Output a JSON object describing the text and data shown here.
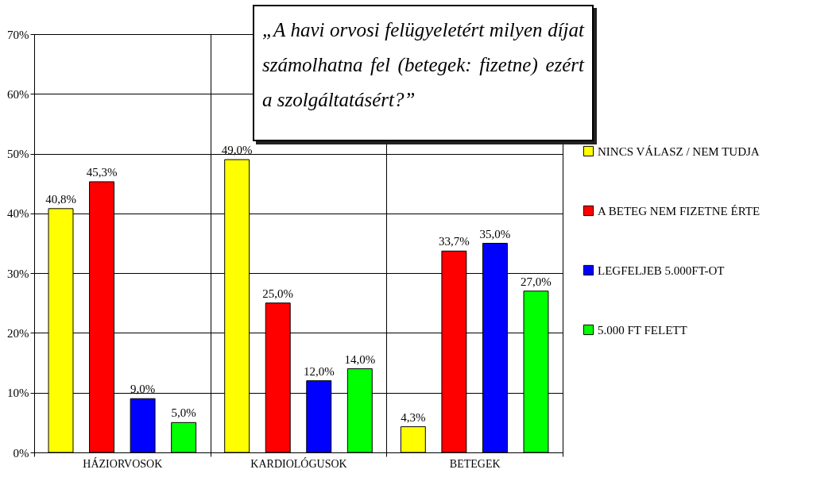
{
  "chart_data": {
    "type": "bar",
    "title": "„A havi orvosi felügyeletért milyen díjat számolhatna fel (betegek: fizetne) ezért a szolgáltatásért?”",
    "categories": [
      "HÁZIORVOSOK",
      "KARDIOLÓGUSOK",
      "BETEGEK"
    ],
    "series": [
      {
        "name": "NINCS VÁLASZ / NEM TUDJA",
        "color": "#ffff00",
        "values": [
          40.8,
          49.0,
          4.3
        ],
        "value_labels": [
          "40,8%",
          "49,0%",
          "4,3%"
        ]
      },
      {
        "name": "A BETEG NEM FIZETNE ÉRTE",
        "color": "#ff0000",
        "values": [
          45.3,
          25.0,
          33.7
        ],
        "value_labels": [
          "45,3%",
          "25,0%",
          "33,7%"
        ]
      },
      {
        "name": "LEGFELJEB 5.000FT-OT",
        "color": "#0000ff",
        "values": [
          9.0,
          12.0,
          35.0
        ],
        "value_labels": [
          "9,0%",
          "12,0%",
          "35,0%"
        ]
      },
      {
        "name": "5.000 FT FELETT",
        "color": "#00ff00",
        "values": [
          5.0,
          14.0,
          27.0
        ],
        "value_labels": [
          "5,0%",
          "14,0%",
          "27,0%"
        ]
      }
    ],
    "ylim": [
      0,
      70
    ],
    "yticks": [
      {
        "value": 0,
        "label": "0%"
      },
      {
        "value": 10,
        "label": "10%"
      },
      {
        "value": 20,
        "label": "20%"
      },
      {
        "value": 30,
        "label": "30%"
      },
      {
        "value": 40,
        "label": "40%"
      },
      {
        "value": 50,
        "label": "50%"
      },
      {
        "value": 60,
        "label": "60%"
      },
      {
        "value": 70,
        "label": "70%"
      }
    ],
    "grid": true,
    "legend": "right"
  }
}
